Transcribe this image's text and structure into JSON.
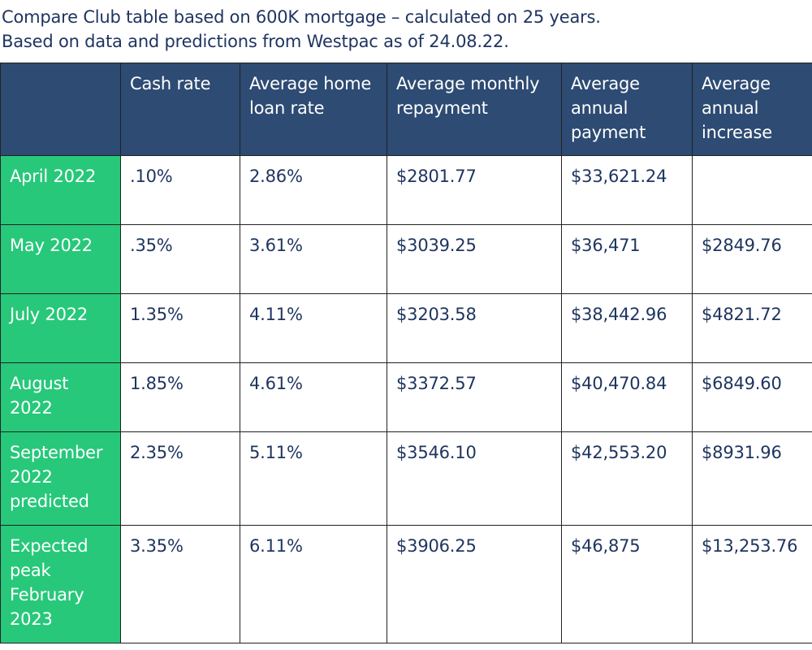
{
  "intro": {
    "line1": "Compare Club table based on 600K mortgage – calculated on 25 years.",
    "line2": "Based on data and predictions from Westpac as of 24.08.22."
  },
  "table": {
    "headers": [
      "",
      "Cash rate",
      "Average home loan rate",
      "Average monthly repayment",
      "Average annual payment",
      "Average annual increase"
    ],
    "rows": [
      {
        "period": "April 2022",
        "cash_rate": ".10%",
        "home_loan_rate": "2.86%",
        "monthly_repayment": "$2801.77",
        "annual_payment": "$33,621.24",
        "annual_increase": ""
      },
      {
        "period": "May 2022",
        "cash_rate": ".35%",
        "home_loan_rate": "3.61%",
        "monthly_repayment": "$3039.25",
        "annual_payment": "$36,471",
        "annual_increase": "$2849.76"
      },
      {
        "period": "July 2022",
        "cash_rate": "1.35%",
        "home_loan_rate": "4.11%",
        "monthly_repayment": "$3203.58",
        "annual_payment": "$38,442.96",
        "annual_increase": "$4821.72"
      },
      {
        "period": "August 2022",
        "cash_rate": "1.85%",
        "home_loan_rate": "4.61%",
        "monthly_repayment": "$3372.57",
        "annual_payment": "$40,470.84",
        "annual_increase": "$6849.60"
      },
      {
        "period": "September 2022 predicted",
        "cash_rate": "2.35%",
        "home_loan_rate": "5.11%",
        "monthly_repayment": "$3546.10",
        "annual_payment": "$42,553.20",
        "annual_increase": "$8931.96"
      },
      {
        "period": "Expected peak February 2023",
        "cash_rate": "3.35%",
        "home_loan_rate": "6.11%",
        "monthly_repayment": "$3906.25",
        "annual_payment": "$46,875",
        "annual_increase": "$13,253.76"
      }
    ]
  },
  "colors": {
    "header_bg": "#2d4b73",
    "row_header_bg": "#27c87a",
    "text": "#1f3560"
  }
}
